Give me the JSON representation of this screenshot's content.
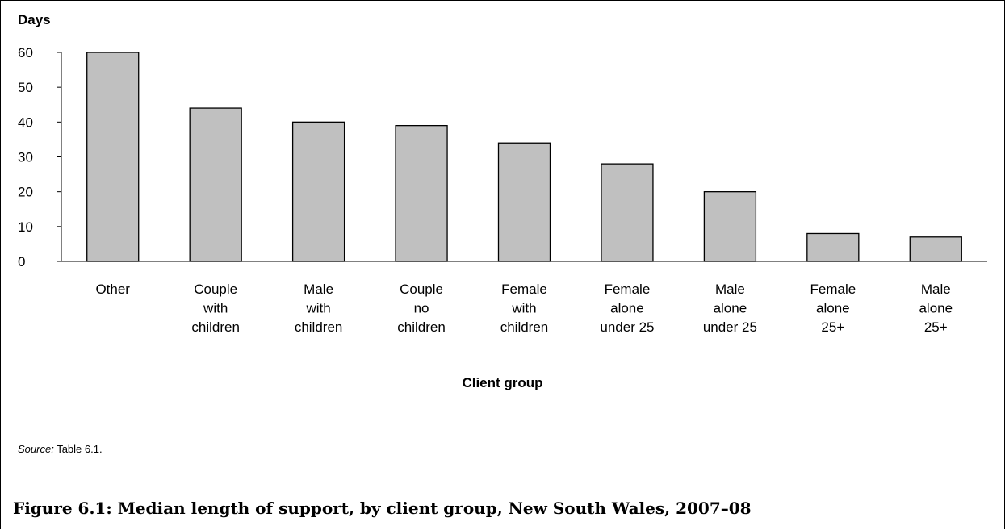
{
  "chart_data": {
    "type": "bar",
    "ylabel": "Days",
    "xlabel": "Client group",
    "ylim": [
      0,
      60
    ],
    "yticks": [
      0,
      10,
      20,
      30,
      40,
      50,
      60
    ],
    "grid": false,
    "bar_color": "#c0c0c0",
    "categories": [
      "Other",
      "Couple with children",
      "Male with children",
      "Couple no children",
      "Female with children",
      "Female alone under 25",
      "Male alone under 25",
      "Female alone 25+",
      "Male alone 25+"
    ],
    "category_lines": [
      [
        "Other"
      ],
      [
        "Couple",
        "with",
        "children"
      ],
      [
        "Male",
        "with",
        "children"
      ],
      [
        "Couple",
        "no",
        "children"
      ],
      [
        "Female",
        "with",
        "children"
      ],
      [
        "Female",
        "alone",
        "under 25"
      ],
      [
        "Male",
        "alone",
        "under 25"
      ],
      [
        "Female",
        "alone",
        "25+"
      ],
      [
        "Male",
        "alone",
        "25+"
      ]
    ],
    "values": [
      60,
      44,
      40,
      39,
      34,
      28,
      20,
      8,
      7
    ]
  },
  "source": {
    "label": "Source:",
    "text": " Table 6.1."
  },
  "figure_caption": "Figure 6.1: Median length of support, by client group, New South Wales, 2007–08"
}
